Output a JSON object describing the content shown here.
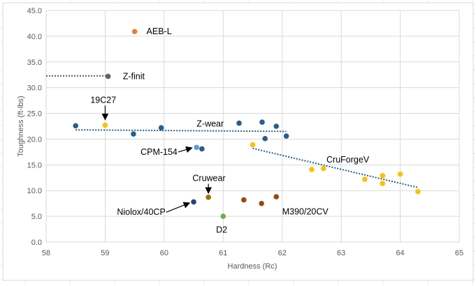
{
  "chart_data": {
    "type": "scatter",
    "title": "",
    "xlabel": "Hardness (Rc)",
    "ylabel": "Toughness (ft-lbs)",
    "xlim": [
      58,
      65
    ],
    "ylim": [
      0,
      45
    ],
    "xticks": [
      "58",
      "59",
      "60",
      "61",
      "62",
      "63",
      "64",
      "65"
    ],
    "yticks": [
      "0.0",
      "5.0",
      "10.0",
      "15.0",
      "20.0",
      "25.0",
      "30.0",
      "35.0",
      "40.0",
      "45.0"
    ],
    "grid": true,
    "legend": "none",
    "series": [
      {
        "name": "AEB-L",
        "color": "#ED7D31",
        "points": [
          [
            59.5,
            40.9
          ]
        ]
      },
      {
        "name": "Z-finit",
        "color": "#636363",
        "points": [
          [
            59.05,
            32.2
          ]
        ]
      },
      {
        "name": "19C27",
        "color": "#FFC000",
        "points": [
          [
            59.0,
            22.7
          ]
        ]
      },
      {
        "name": "Z-wear",
        "color": "#255E91",
        "points": [
          [
            58.5,
            22.6
          ],
          [
            59.48,
            21.0
          ],
          [
            59.95,
            22.2
          ],
          [
            61.27,
            23.1
          ],
          [
            61.66,
            23.3
          ],
          [
            61.9,
            22.5
          ],
          [
            62.07,
            20.6
          ],
          [
            61.71,
            20.1
          ],
          [
            60.64,
            18.1
          ]
        ]
      },
      {
        "name": "CPM-154",
        "color": "#5B9BD5",
        "points": [
          [
            60.55,
            18.4
          ]
        ]
      },
      {
        "name": "CruForgeV",
        "color": "#FFC000",
        "points": [
          [
            61.5,
            18.9
          ],
          [
            62.5,
            14.1
          ],
          [
            62.7,
            14.3
          ],
          [
            63.4,
            12.2
          ],
          [
            63.7,
            12.9
          ],
          [
            63.7,
            11.4
          ],
          [
            64.0,
            13.2
          ],
          [
            64.3,
            9.8
          ]
        ]
      },
      {
        "name": "Cruwear",
        "color": "#997300",
        "points": [
          [
            60.75,
            8.7
          ]
        ]
      },
      {
        "name": "Niolox/40CP",
        "color": "#264478",
        "points": [
          [
            60.5,
            7.8
          ]
        ]
      },
      {
        "name": "D2",
        "color": "#70AD47",
        "points": [
          [
            61.0,
            5.0
          ]
        ]
      },
      {
        "name": "M390/20CV",
        "color": "#9E480E",
        "points": [
          [
            61.35,
            8.2
          ],
          [
            61.65,
            7.5
          ],
          [
            61.9,
            8.8
          ]
        ]
      }
    ],
    "trendlines": [
      {
        "name": "Z-finit-trend",
        "color": "#595959",
        "from": [
          58.0,
          32.3
        ],
        "to": [
          59.05,
          32.3
        ]
      },
      {
        "name": "Z-wear-trend",
        "color": "#255E91",
        "from": [
          58.5,
          21.8
        ],
        "to": [
          62.07,
          21.5
        ]
      },
      {
        "name": "CruForgeV-trend",
        "color": "#255E91",
        "from": [
          61.5,
          18.2
        ],
        "to": [
          64.3,
          10.6
        ]
      }
    ],
    "annotations": [
      {
        "text": "AEB-L",
        "at": [
          59.7,
          40.9
        ],
        "arrow": false
      },
      {
        "text": "Z-finit",
        "at": [
          59.3,
          32.2
        ],
        "arrow": false
      },
      {
        "text": "19C27",
        "at": [
          58.75,
          27.6
        ],
        "arrow": true,
        "arrow_to": [
          59.0,
          23.8
        ]
      },
      {
        "text": "Z-wear",
        "at": [
          60.55,
          23.0
        ],
        "arrow": false
      },
      {
        "text": "CPM-154",
        "at": [
          59.6,
          17.5
        ],
        "arrow": true,
        "arrow_to": [
          60.47,
          18.3
        ]
      },
      {
        "text": "CruForgeV",
        "at": [
          62.75,
          16.0
        ],
        "arrow": false
      },
      {
        "text": "Cruwear",
        "at": [
          60.48,
          12.4
        ],
        "arrow": true,
        "arrow_to": [
          60.75,
          9.5
        ]
      },
      {
        "text": "Niolox/40CP",
        "at": [
          59.2,
          5.8
        ],
        "arrow": true,
        "arrow_to": [
          60.43,
          7.6
        ]
      },
      {
        "text": "D2",
        "at": [
          60.88,
          2.4
        ],
        "arrow": false
      },
      {
        "text": "M390/20CV",
        "at": [
          62.0,
          5.9
        ],
        "arrow": false
      }
    ]
  }
}
